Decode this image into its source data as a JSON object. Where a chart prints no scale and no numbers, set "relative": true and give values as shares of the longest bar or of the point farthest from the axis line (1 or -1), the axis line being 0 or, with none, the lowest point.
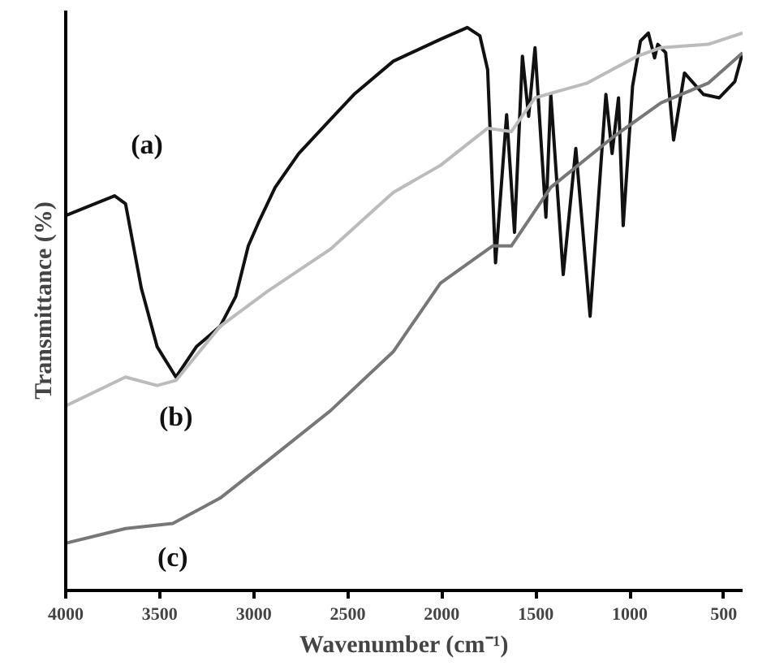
{
  "chart_data": {
    "type": "line",
    "relative": true,
    "xlabel": "Wavenumber (cm⁻¹)",
    "ylabel": "Transmittance (%)",
    "xlim": [
      4000,
      400
    ],
    "xticks": [
      4000,
      3500,
      3000,
      2500,
      2000,
      1500,
      1000,
      500
    ],
    "grid": false,
    "legend": false,
    "marker": "none",
    "line_style": "solid",
    "series": [
      {
        "name": "(a)",
        "color": "#111111",
        "x": [
          4000,
          3740,
          3682,
          3598,
          3514,
          3414,
          3305,
          3179,
          3096,
          3029,
          2970,
          2886,
          2761,
          2593,
          2467,
          2258,
          2007,
          1864,
          1797,
          1756,
          1714,
          1655,
          1613,
          1571,
          1538,
          1504,
          1446,
          1420,
          1354,
          1287,
          1211,
          1127,
          1094,
          1060,
          1035,
          985,
          943,
          901,
          868,
          851,
          809,
          767,
          709,
          608,
          524,
          441,
          400
        ],
        "values": [
          0.666,
          0.701,
          0.687,
          0.537,
          0.433,
          0.379,
          0.433,
          0.469,
          0.522,
          0.612,
          0.657,
          0.716,
          0.776,
          0.836,
          0.881,
          0.94,
          0.979,
          1.0,
          0.985,
          0.925,
          0.582,
          0.845,
          0.636,
          0.949,
          0.842,
          0.964,
          0.663,
          0.881,
          0.561,
          0.785,
          0.487,
          0.881,
          0.776,
          0.875,
          0.648,
          0.896,
          0.976,
          0.99,
          0.946,
          0.97,
          0.955,
          0.8,
          0.919,
          0.881,
          0.875,
          0.904,
          0.955
        ]
      },
      {
        "name": "(b)",
        "color": "#bbbbbb",
        "x": [
          4000,
          3682,
          3514,
          3414,
          3179,
          2928,
          2593,
          2258,
          2007,
          1756,
          1630,
          1504,
          1228,
          960,
          834,
          583,
          400
        ],
        "values": [
          0.328,
          0.379,
          0.364,
          0.373,
          0.469,
          0.531,
          0.606,
          0.707,
          0.755,
          0.821,
          0.815,
          0.875,
          0.901,
          0.949,
          0.964,
          0.97,
          0.99
        ]
      },
      {
        "name": "(c)",
        "color": "#777777",
        "x": [
          4000,
          3682,
          3431,
          3179,
          2928,
          2593,
          2258,
          2007,
          1730,
          1630,
          1420,
          1086,
          834,
          583,
          400
        ],
        "values": [
          0.084,
          0.11,
          0.119,
          0.164,
          0.23,
          0.319,
          0.424,
          0.546,
          0.612,
          0.612,
          0.716,
          0.806,
          0.866,
          0.901,
          0.955
        ]
      }
    ]
  }
}
